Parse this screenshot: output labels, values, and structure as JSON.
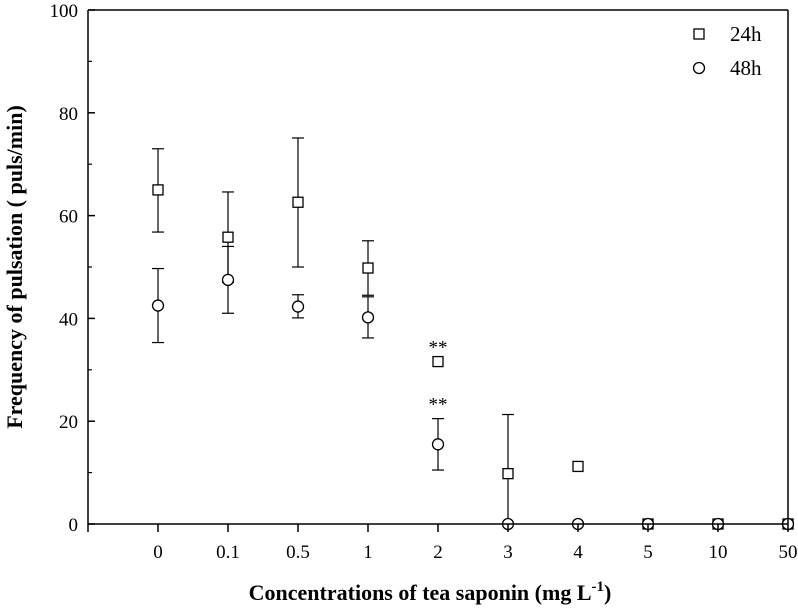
{
  "chart_data": {
    "type": "scatter",
    "xlabel": "Concentrations of tea saponin (mg L",
    "xlabel_sup": "-1",
    "xlabel_close": ")",
    "ylabel": "Frequency of pulsation ( puls/min)",
    "categories": [
      "0",
      "0.1",
      "0.5",
      "1",
      "2",
      "3",
      "4",
      "5",
      "10",
      "50"
    ],
    "ylim": [
      0,
      100
    ],
    "yticks": [
      "0",
      "20",
      "40",
      "60",
      "80",
      "100"
    ],
    "grid": false,
    "legend_position": "top-right",
    "series": [
      {
        "name": "24h",
        "marker": "square",
        "values": [
          65,
          55.8,
          62.6,
          49.8,
          31.6,
          9.8,
          11.2,
          0,
          0,
          0
        ],
        "err_low": [
          56.8,
          47,
          50,
          44.5,
          31.6,
          0,
          11.2,
          0,
          0,
          0
        ],
        "err_high": [
          73,
          64.6,
          75.1,
          55.1,
          31.6,
          21.3,
          11.2,
          0,
          0,
          0
        ]
      },
      {
        "name": "48h",
        "marker": "circle",
        "values": [
          42.5,
          47.5,
          42.3,
          40.2,
          15.5,
          0,
          0,
          0,
          0,
          0
        ],
        "err_low": [
          35.3,
          41,
          40.1,
          36.2,
          10.5,
          0,
          0,
          0,
          0,
          0
        ],
        "err_high": [
          49.7,
          54,
          44.6,
          44.2,
          20.5,
          0,
          0,
          0,
          0,
          0
        ]
      }
    ],
    "annotations": [
      {
        "text": "**",
        "category": "2",
        "series": "24h"
      },
      {
        "text": "**",
        "category": "2",
        "series": "48h"
      }
    ]
  }
}
